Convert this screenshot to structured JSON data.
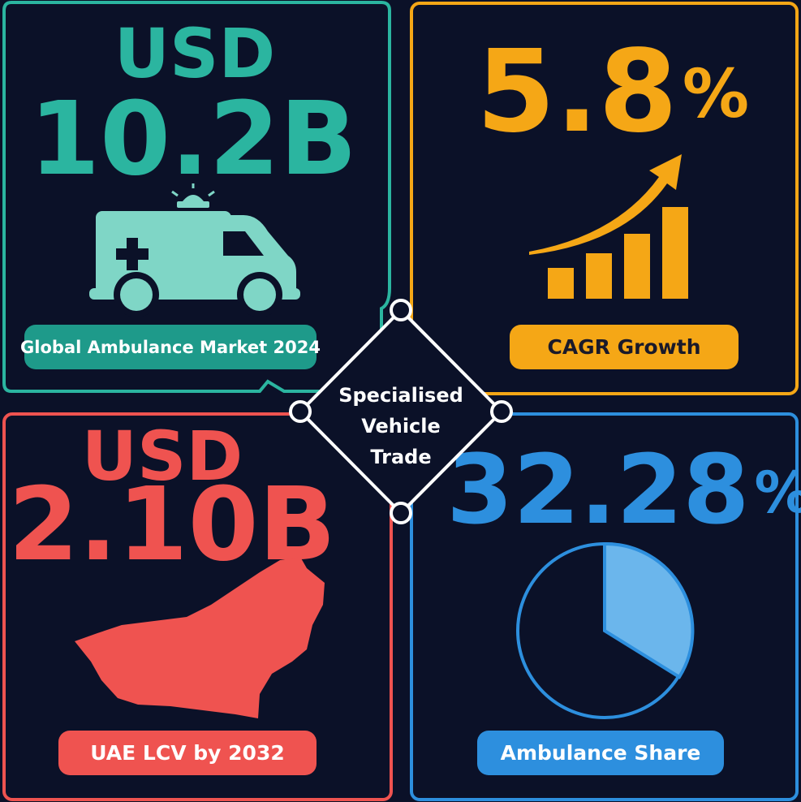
{
  "panels": [
    {
      "line1": "USD",
      "line2": "10.2B",
      "label": "Global Ambulance Market 2024"
    },
    {
      "number": "5.8",
      "suffix": "%",
      "label": "CAGR Growth"
    },
    {
      "line1": "USD",
      "line2": "2.10B",
      "label": "UAE LCV by 2032"
    },
    {
      "number": "32.28",
      "suffix": "%",
      "label": "Ambulance Share"
    }
  ],
  "center": {
    "lines": [
      "Specialised",
      "Vehicle",
      "Trade"
    ]
  }
}
